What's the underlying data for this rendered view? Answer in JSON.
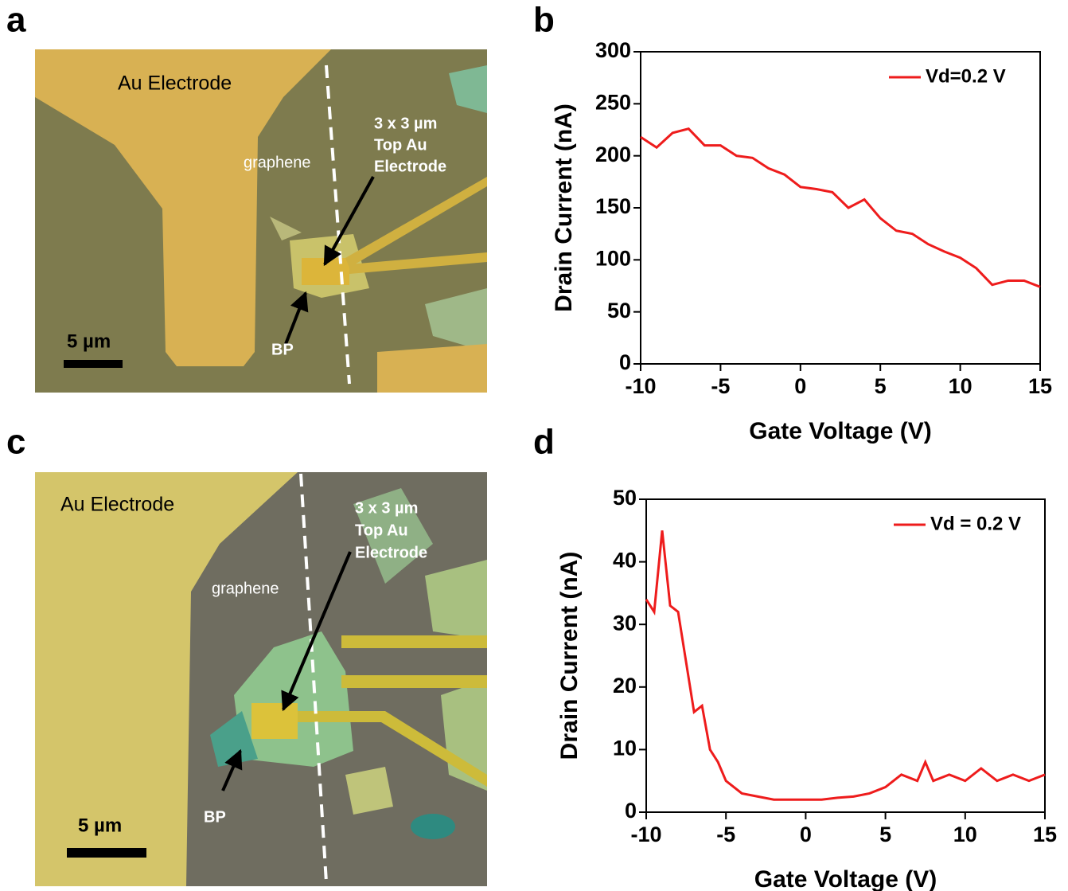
{
  "panel_labels": [
    "a",
    "b",
    "c",
    "d"
  ],
  "micrographs": [
    {
      "electrode": "Au Electrode",
      "graphene": "graphene",
      "top_electrode": [
        "3 x 3 µm",
        "Top Au",
        "Electrode"
      ],
      "bp": "BP",
      "scale_bar": "5 µm"
    },
    {
      "electrode": "Au Electrode",
      "graphene": "graphene",
      "top_electrode": [
        "3 x 3 µm",
        "Top Au",
        "Electrode"
      ],
      "bp": "BP",
      "scale_bar": "5 µm"
    }
  ],
  "chart_data": [
    {
      "type": "line",
      "xlabel": "Gate Voltage (V)",
      "ylabel": "Drain Current (nA)",
      "xlim": [
        -10,
        15
      ],
      "ylim": [
        0,
        300
      ],
      "xticks": [
        -10,
        -5,
        0,
        5,
        10,
        15
      ],
      "yticks": [
        0,
        50,
        100,
        150,
        200,
        250,
        300
      ],
      "legend": "upper right",
      "x": [
        -10,
        -9,
        -8,
        -7,
        -6,
        -5,
        -4,
        -3,
        -2,
        -1,
        0,
        1,
        2,
        3,
        4,
        5,
        6,
        7,
        8,
        9,
        10,
        11,
        12,
        13,
        14,
        15
      ],
      "series": [
        {
          "name": "Vd=0.2 V",
          "color": "#ee1c1c",
          "values": [
            218,
            208,
            222,
            226,
            210,
            210,
            200,
            198,
            188,
            182,
            170,
            168,
            165,
            150,
            158,
            140,
            128,
            125,
            115,
            108,
            102,
            92,
            76,
            80,
            80,
            74
          ]
        }
      ]
    },
    {
      "type": "line",
      "xlabel": "Gate Voltage (V)",
      "ylabel": "Drain Current (nA)",
      "xlim": [
        -10,
        15
      ],
      "ylim": [
        0,
        50
      ],
      "xticks": [
        -10,
        -5,
        0,
        5,
        10,
        15
      ],
      "yticks": [
        0,
        10,
        20,
        30,
        40,
        50
      ],
      "legend": "upper right",
      "x": [
        -10,
        -9.5,
        -9,
        -8.5,
        -8,
        -7.5,
        -7,
        -6.5,
        -6,
        -5.5,
        -5,
        -4,
        -3,
        -2,
        -1,
        0,
        1,
        2,
        3,
        4,
        5,
        6,
        7,
        7.5,
        8,
        9,
        10,
        11,
        12,
        13,
        14,
        15
      ],
      "series": [
        {
          "name": "Vd = 0.2 V",
          "color": "#ee1c1c",
          "values": [
            34,
            32,
            45,
            33,
            32,
            24,
            16,
            17,
            10,
            8,
            5,
            3,
            2.5,
            2,
            2,
            2,
            2,
            2.3,
            2.5,
            3,
            4,
            6,
            5,
            8,
            5,
            6,
            5,
            7,
            5,
            6,
            5,
            6
          ]
        }
      ]
    }
  ]
}
